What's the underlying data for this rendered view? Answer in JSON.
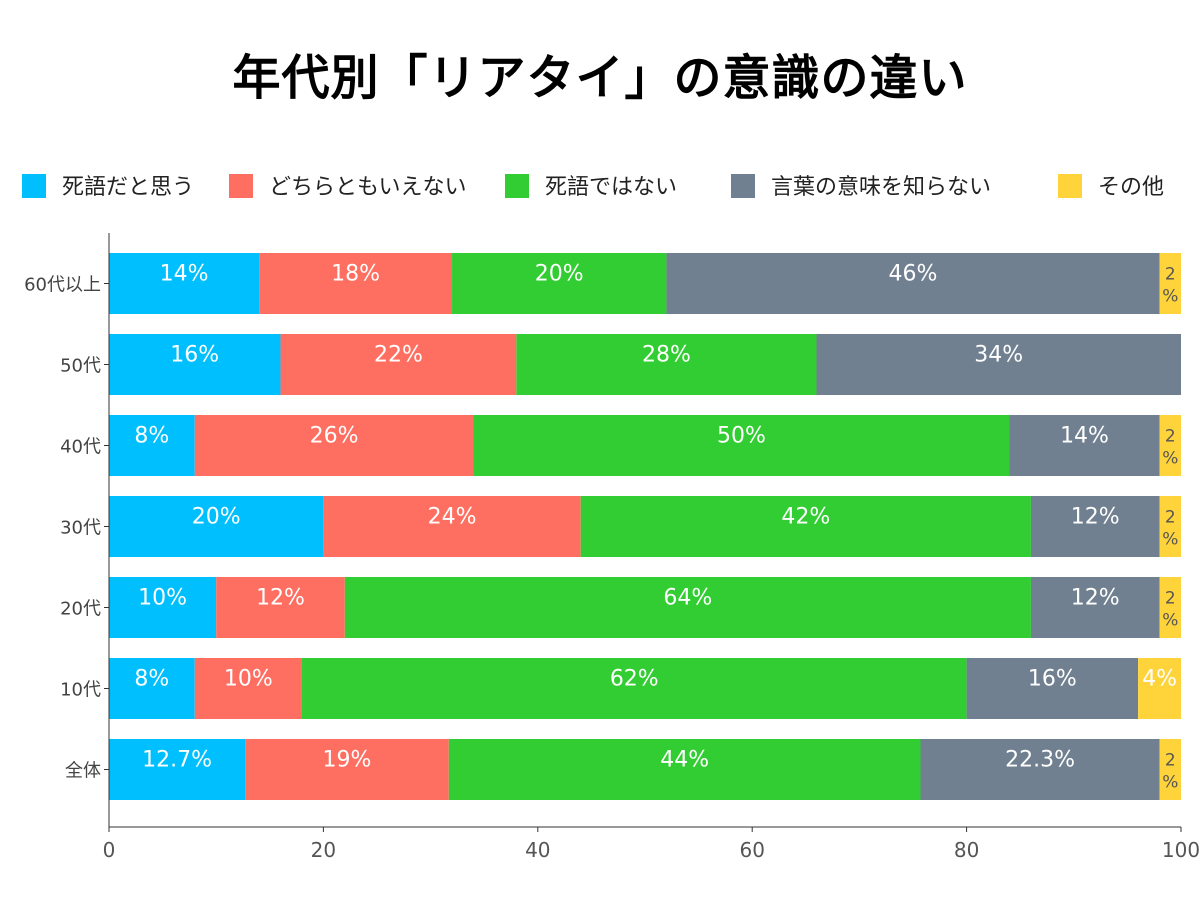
{
  "chart_data": {
    "type": "bar",
    "orientation": "horizontal",
    "stacked": true,
    "title": "年代別「リアタイ」の意識の違い",
    "xlabel": "",
    "ylabel": "",
    "xlim": [
      0,
      100
    ],
    "x_ticks": [
      "0",
      "20",
      "40",
      "60",
      "80",
      "100"
    ],
    "grid": false,
    "legend_position": "top",
    "categories": [
      "60代以上",
      "50代",
      "40代",
      "30代",
      "20代",
      "10代",
      "全体"
    ],
    "series": [
      {
        "name": "死語だと思う",
        "color": "#00BFFF",
        "values": [
          14,
          16,
          8,
          20,
          10,
          8,
          12.7
        ],
        "labels": [
          "14%",
          "16%",
          "8%",
          "20%",
          "10%",
          "8%",
          "12.7%"
        ]
      },
      {
        "name": "どちらともいえない",
        "color": "#FF6F61",
        "values": [
          18,
          22,
          26,
          24,
          12,
          10,
          19
        ],
        "labels": [
          "18%",
          "22%",
          "26%",
          "24%",
          "12%",
          "10%",
          "19%"
        ]
      },
      {
        "name": "死語ではない",
        "color": "#32CD32",
        "values": [
          20,
          28,
          50,
          42,
          64,
          62,
          44
        ],
        "labels": [
          "20%",
          "28%",
          "50%",
          "42%",
          "64%",
          "62%",
          "44%"
        ]
      },
      {
        "name": "言葉の意味を知らない",
        "color": "#708090",
        "values": [
          46,
          34,
          14,
          12,
          12,
          16,
          22.3
        ],
        "labels": [
          "46%",
          "34%",
          "14%",
          "12%",
          "12%",
          "16%",
          "22.3%"
        ]
      },
      {
        "name": "その他",
        "color": "#FFD43B",
        "values": [
          2,
          0,
          2,
          2,
          2,
          4,
          2
        ],
        "labels": [
          "2%",
          "",
          "2%",
          "2%",
          "2%",
          "4%",
          "2%"
        ]
      }
    ]
  }
}
